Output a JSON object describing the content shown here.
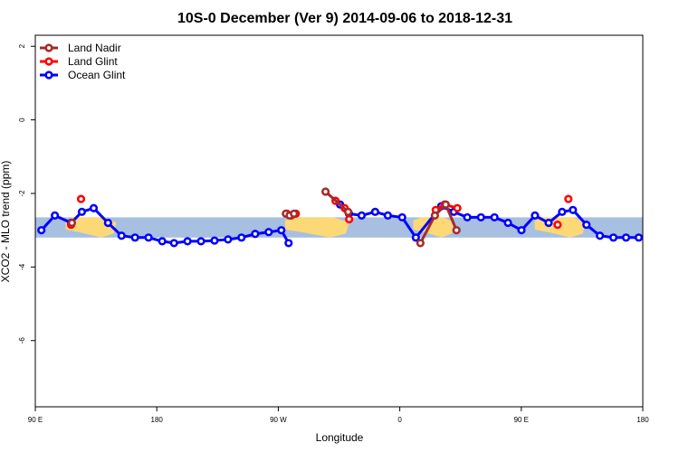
{
  "chart_data": {
    "type": "line",
    "title": "10S-0 December (Ver 9)   2014-09-06 to 2018-12-31",
    "xlabel": "Longitude",
    "ylabel": "XCO2 - MLO trend (ppm)",
    "xlim": [
      90,
      450
    ],
    "ylim": [
      -7.8,
      2.3
    ],
    "x_ticks": [
      {
        "value": 90,
        "label": "90 E"
      },
      {
        "value": 162,
        "label": "180"
      },
      {
        "value": 234,
        "label": "90 W"
      },
      {
        "value": 306,
        "label": "0"
      },
      {
        "value": 378,
        "label": "90 E"
      },
      {
        "value": 450,
        "label": "180"
      }
    ],
    "y_ticks": [
      {
        "value": 2,
        "label": "2"
      },
      {
        "value": 0,
        "label": "0"
      },
      {
        "value": -2,
        "label": "-2"
      },
      {
        "value": -4,
        "label": "-4"
      },
      {
        "value": -6,
        "label": "-6"
      }
    ],
    "band": {
      "y_min": -3.2,
      "y_max": -2.65,
      "ocean_color": "#a7bfe0",
      "land_color": "#fcd877"
    },
    "land_segments": [
      {
        "x": [
          108,
          138
        ],
        "y_top": -2.65,
        "y_bottom": -3.2
      },
      {
        "x": [
          238,
          276
        ],
        "y_top": -2.65,
        "y_bottom": -3.2
      },
      {
        "x": [
          314,
          338
        ],
        "y_top": -2.65,
        "y_bottom": -3.2
      },
      {
        "x": [
          386,
          416
        ],
        "y_top": -2.65,
        "y_bottom": -3.2
      }
    ],
    "legend": [
      {
        "label": "Land Nadir",
        "color": "#a52a2a"
      },
      {
        "label": "Land Glint",
        "color": "#ff0000"
      },
      {
        "label": "Ocean Glint",
        "color": "#0000ff"
      }
    ],
    "series": [
      {
        "name": "Ocean Glint",
        "color": "#0000ff",
        "lines": [
          {
            "x": [
              93.6,
              101.6,
              111.2,
              117.6,
              124.6,
              133.1,
              141.1,
              149.1,
              157.1,
              165.2,
              172.2,
              180.2,
              188.2,
              196.2,
              204.2,
              212.2,
              220.3,
              228.3,
              235.8,
              240.1
            ],
            "y": [
              -3.0,
              -2.6,
              -2.8,
              -2.5,
              -2.4,
              -2.8,
              -3.15,
              -3.2,
              -3.2,
              -3.3,
              -3.35,
              -3.3,
              -3.3,
              -3.28,
              -3.25,
              -3.2,
              -3.1,
              -3.05,
              -3.0,
              -3.35
            ]
          },
          {
            "x": [
              270.6,
              275.9,
              283.4,
              291.4,
              298.9,
              307.4,
              315.5,
              330.5,
              338.0,
              346.0,
              354.1,
              362.1,
              370.1,
              378.1,
              386.1,
              394.2,
              402.2,
              408.6,
              416.6,
              424.6,
              432.6,
              440.1,
              447.6
            ],
            "y": [
              -2.3,
              -2.55,
              -2.6,
              -2.5,
              -2.6,
              -2.65,
              -3.2,
              -2.35,
              -2.5,
              -2.65,
              -2.65,
              -2.65,
              -2.8,
              -3.0,
              -2.6,
              -2.8,
              -2.5,
              -2.45,
              -2.85,
              -3.15,
              -3.2,
              -3.2,
              -3.2
            ]
          }
        ]
      },
      {
        "name": "Land Glint",
        "color": "#ff0000",
        "lines": [
          {
            "x": [
              117.1
            ],
            "y": [
              -2.15
            ]
          },
          {
            "x": [
              111.2
            ],
            "y": [
              -2.85
            ]
          },
          {
            "x": [
              239.1,
              241.7,
              244.4
            ],
            "y": [
              -2.55,
              -2.6,
              -2.55
            ]
          },
          {
            "x": [
              267.9,
              273.3,
              276.0
            ],
            "y": [
              -2.2,
              -2.4,
              -2.7
            ]
          },
          {
            "x": [
              327.3,
              332.6,
              340.1
            ],
            "y": [
              -2.45,
              -2.3,
              -2.4
            ]
          },
          {
            "x": [
              399.5
            ],
            "y": [
              -2.85
            ]
          },
          {
            "x": [
              405.9
            ],
            "y": [
              -2.15
            ]
          }
        ]
      },
      {
        "name": "Land Nadir",
        "color": "#a52a2a",
        "lines": [
          {
            "x": [
              238.5,
              240.7,
              243.3
            ],
            "y": [
              -2.55,
              -2.6,
              -2.55
            ]
          },
          {
            "x": [
              262.0,
              275.4
            ],
            "y": [
              -1.95,
              -2.5
            ]
          },
          {
            "x": [
              318.2,
              326.8,
              333.2,
              339.6
            ],
            "y": [
              -3.35,
              -2.6,
              -2.3,
              -3.0
            ]
          },
          {
            "x": [
              111.7
            ],
            "y": [
              -2.8
            ]
          }
        ]
      }
    ]
  }
}
